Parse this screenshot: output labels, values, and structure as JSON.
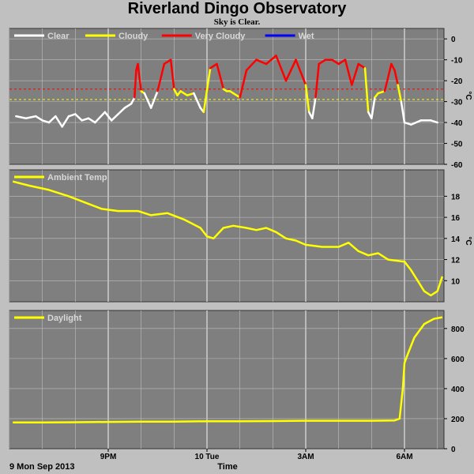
{
  "header": {
    "title": "Riverland Dingo Observatory",
    "subtitle": "Sky is Clear."
  },
  "footer": {
    "date_label": "9 Mon Sep 2013",
    "x_axis_title": "Time"
  },
  "x_axis": {
    "ticks": [
      {
        "label": "9PM",
        "t": 21
      },
      {
        "label": "10 Tue",
        "t": 24
      },
      {
        "label": "3AM",
        "t": 27
      },
      {
        "label": "6AM",
        "t": 30
      }
    ],
    "range": [
      18.0,
      31.2
    ]
  },
  "colors": {
    "background": "#c0c0c0",
    "plot_bg": "#7f7f7f",
    "grid": "#bfbfbf",
    "clear": "#ffffff",
    "cloudy": "#ffff00",
    "very_cloudy": "#ff0000",
    "wet": "#0000ff"
  },
  "chart_data": [
    {
      "type": "line",
      "id": "sky",
      "ylabel": "°C",
      "ylim": [
        -60,
        5
      ],
      "yticks": [
        0,
        -10,
        -20,
        -30,
        -40,
        -50,
        -60
      ],
      "legend": [
        {
          "label": "Clear",
          "color": "#ffffff"
        },
        {
          "label": "Cloudy",
          "color": "#ffff00"
        },
        {
          "label": "Very Cloudy",
          "color": "#ff0000"
        },
        {
          "label": "Wet",
          "color": "#0000ff"
        }
      ],
      "thresholds": [
        {
          "value": -24,
          "color": "#ff0000"
        },
        {
          "value": -29,
          "color": "#ffff00"
        }
      ],
      "x": [
        18.2,
        18.5,
        18.8,
        19.0,
        19.2,
        19.4,
        19.6,
        19.8,
        20.0,
        20.2,
        20.4,
        20.6,
        20.9,
        21.1,
        21.3,
        21.5,
        21.7,
        21.8,
        21.85,
        21.9,
        22.0,
        22.1,
        22.3,
        22.5,
        22.7,
        22.9,
        23.0,
        23.1,
        23.2,
        23.4,
        23.6,
        23.8,
        23.9,
        24.1,
        24.3,
        24.5,
        24.6,
        24.7,
        24.8,
        25.0,
        25.2,
        25.5,
        25.8,
        26.1,
        26.4,
        26.7,
        27.0,
        27.1,
        27.2,
        27.3,
        27.4,
        27.6,
        27.8,
        28.0,
        28.2,
        28.4,
        28.6,
        28.8,
        28.9,
        29.0,
        29.1,
        29.2,
        29.4,
        29.6,
        29.7,
        29.8,
        29.9,
        30.0,
        30.2,
        30.5,
        30.8,
        31.0
      ],
      "sky_temp": [
        -37,
        -38,
        -37,
        -39,
        -40,
        -37,
        -42,
        -37,
        -36,
        -39,
        -38,
        -40,
        -35,
        -39,
        -36,
        -33,
        -31,
        -28,
        -15,
        -12,
        -25,
        -26,
        -33,
        -25,
        -12,
        -10,
        -24,
        -27,
        -25,
        -27,
        -26,
        -33,
        -35,
        -14,
        -12,
        -24,
        -25,
        -25,
        -26,
        -28,
        -15,
        -10,
        -12,
        -8,
        -20,
        -10,
        -22,
        -35,
        -38,
        -28,
        -12,
        -10,
        -10,
        -12,
        -10,
        -22,
        -12,
        -14,
        -35,
        -38,
        -28,
        -26,
        -25,
        -12,
        -15,
        -22,
        -30,
        -40,
        -41,
        -39,
        -39,
        -40
      ]
    },
    {
      "type": "line",
      "id": "ambient",
      "ylabel": "°C",
      "ylim": [
        8,
        20.5
      ],
      "yticks": [
        10,
        12,
        14,
        16,
        18
      ],
      "legend": [
        {
          "label": "Ambient Temp",
          "color": "#ffff00"
        }
      ],
      "x": [
        18.1,
        18.6,
        19.2,
        19.8,
        20.3,
        20.8,
        21.3,
        21.9,
        22.3,
        22.8,
        23.3,
        23.8,
        24.0,
        24.2,
        24.5,
        24.8,
        25.2,
        25.5,
        25.8,
        26.1,
        26.4,
        26.7,
        27.0,
        27.5,
        28.0,
        28.3,
        28.6,
        28.9,
        29.2,
        29.5,
        30.0,
        30.2,
        30.4,
        30.6,
        30.8,
        31.0,
        31.15
      ],
      "values": [
        19.4,
        19.0,
        18.6,
        18.0,
        17.4,
        16.8,
        16.6,
        16.6,
        16.2,
        16.4,
        15.8,
        15.0,
        14.2,
        14.0,
        15.0,
        15.2,
        15.0,
        14.8,
        15.0,
        14.6,
        14.0,
        13.8,
        13.4,
        13.2,
        13.2,
        13.6,
        12.8,
        12.4,
        12.6,
        12.0,
        11.8,
        11.0,
        10.0,
        9.0,
        8.6,
        9.0,
        10.4
      ]
    },
    {
      "type": "line",
      "id": "daylight",
      "ylim": [
        0,
        920
      ],
      "yticks": [
        0,
        200,
        400,
        600,
        800
      ],
      "legend": [
        {
          "label": "Daylight",
          "color": "#ffff00"
        }
      ],
      "x": [
        18.1,
        19.0,
        20.0,
        21.0,
        22.0,
        23.0,
        24.0,
        25.0,
        26.0,
        27.0,
        28.0,
        29.0,
        29.7,
        29.85,
        29.95,
        30.0,
        30.1,
        30.3,
        30.6,
        30.9,
        31.15
      ],
      "values": [
        175,
        175,
        176,
        178,
        180,
        180,
        183,
        183,
        184,
        186,
        186,
        186,
        188,
        200,
        400,
        570,
        630,
        740,
        830,
        865,
        875
      ]
    }
  ]
}
